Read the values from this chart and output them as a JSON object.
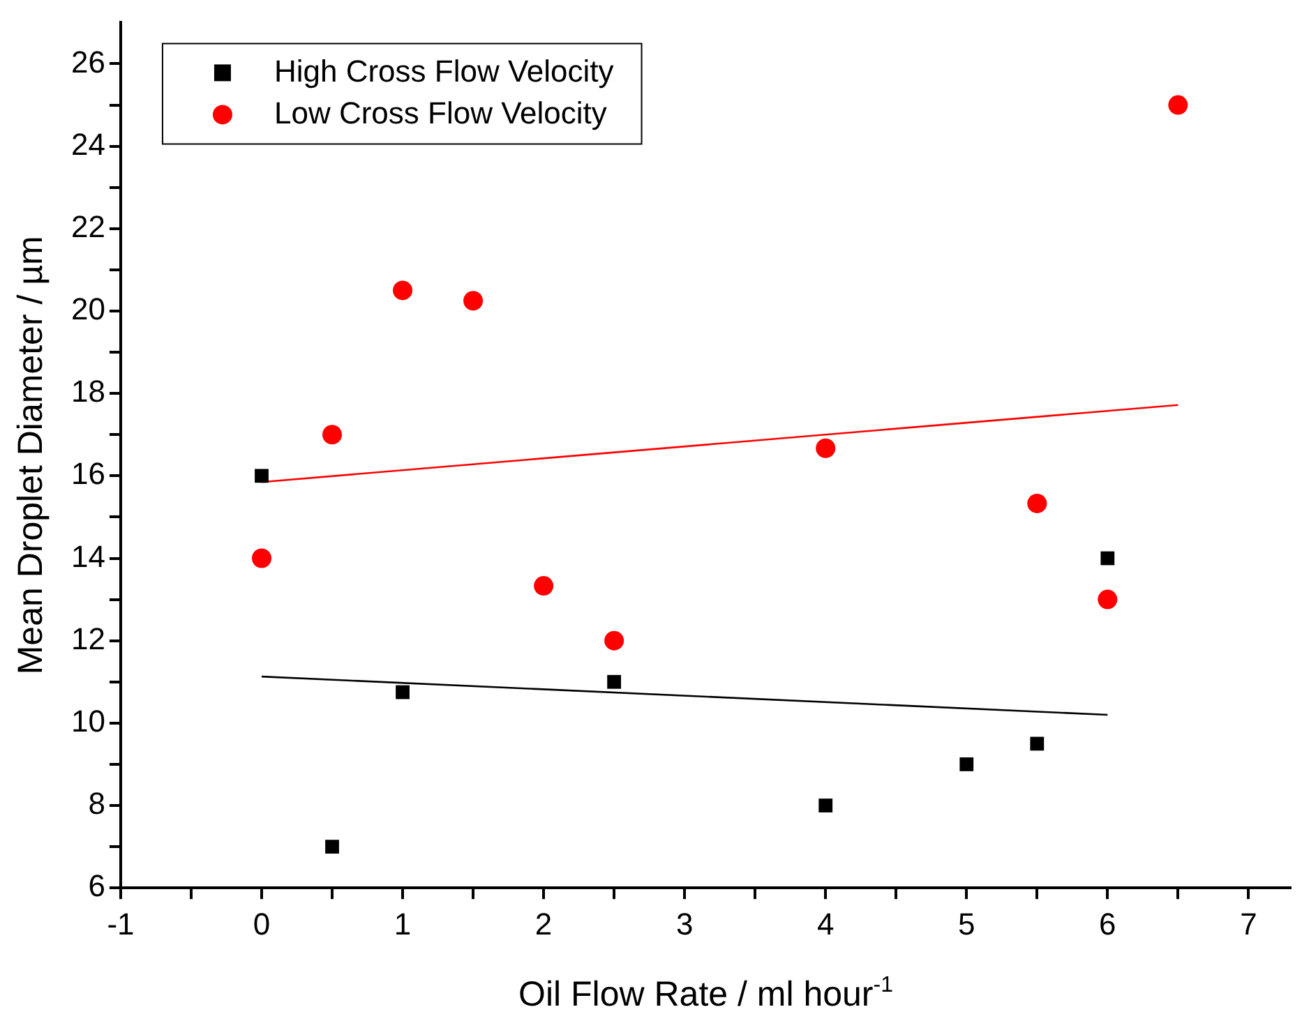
{
  "chart_data": {
    "type": "scatter",
    "xlabel": "Oil Flow Rate / ml hour$^{-1}$",
    "ylabel": "Mean Droplet Diameter / µm",
    "xlim": [
      -1,
      7.3
    ],
    "ylim": [
      6,
      27
    ],
    "xticks": [
      -1,
      {
        "value": -0.5,
        "label": null
      },
      0,
      {
        "value": 0.5,
        "label": null
      },
      1,
      {
        "value": 1.5,
        "label": null
      },
      2,
      {
        "value": 2.5,
        "label": null
      },
      3,
      {
        "value": 3.5,
        "label": null
      },
      4,
      {
        "value": 4.5,
        "label": null
      },
      5,
      {
        "value": 5.5,
        "label": null
      },
      6,
      {
        "value": 6.5,
        "label": null
      },
      7
    ],
    "yticks": [
      6,
      {
        "value": 7,
        "label": null
      },
      8,
      {
        "value": 9,
        "label": null
      },
      10,
      {
        "value": 11,
        "label": null
      },
      12,
      {
        "value": 13,
        "label": null
      },
      14,
      {
        "value": 15,
        "label": null
      },
      16,
      {
        "value": 17,
        "label": null
      },
      18,
      {
        "value": 19,
        "label": null
      },
      20,
      {
        "value": 21,
        "label": null
      },
      22,
      {
        "value": 23,
        "label": null
      },
      24,
      {
        "value": 25,
        "label": null
      },
      26
    ],
    "grid": false,
    "legend": "top left",
    "series": [
      {
        "name": "High Cross Flow Velocity",
        "color": "#000000",
        "marker": "square",
        "x": [
          0,
          0.5,
          1,
          2.5,
          4,
          5,
          5.5,
          6
        ],
        "values": [
          16,
          7,
          10.75,
          11,
          8,
          9,
          9.5,
          14
        ]
      },
      {
        "name": "Low Cross Flow Velocity",
        "color": "#ff0000",
        "marker": "circle",
        "x": [
          0,
          0.5,
          1,
          1.5,
          2,
          2.5,
          4,
          5.5,
          6,
          6.5
        ],
        "values": [
          14,
          17,
          20.5,
          20.25,
          13.33,
          12,
          16.67,
          15.33,
          13,
          25
        ]
      },
      {
        "type": "line",
        "color": "#000000",
        "marker": "none",
        "x": [
          0,
          6
        ],
        "values": [
          11.13,
          10.2
        ]
      },
      {
        "type": "line",
        "color": "#ff0000",
        "marker": "none",
        "x": [
          0,
          6.5
        ],
        "values": [
          15.85,
          17.72
        ]
      }
    ]
  }
}
